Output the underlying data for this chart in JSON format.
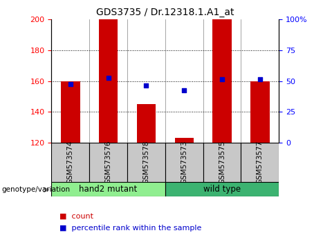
{
  "title": "GDS3735 / Dr.12318.1.A1_at",
  "samples": [
    "GSM573574",
    "GSM573576",
    "GSM573578",
    "GSM573573",
    "GSM573575",
    "GSM573577"
  ],
  "group_hand2": {
    "label": "hand2 mutant",
    "color": "#90EE90",
    "count": 3
  },
  "group_wild": {
    "label": "wild type",
    "color": "#3CB371",
    "count": 3
  },
  "bar_baseline": 120,
  "bar_tops": [
    160,
    200,
    145,
    123,
    200,
    160
  ],
  "bar_color": "#CC0000",
  "bar_width": 0.5,
  "percentile_values": [
    158,
    162,
    157,
    154,
    161,
    161
  ],
  "percentile_color": "#0000CC",
  "left_ylim": [
    120,
    200
  ],
  "left_yticks": [
    120,
    140,
    160,
    180,
    200
  ],
  "right_ylim": [
    0,
    100
  ],
  "right_yticks": [
    0,
    25,
    50,
    75,
    100
  ],
  "right_yticklabels": [
    "0",
    "25",
    "50",
    "75",
    "100%"
  ],
  "hlines": [
    140,
    160,
    180
  ],
  "group_label_text": "genotype/variation",
  "legend_count_color": "#CC0000",
  "legend_pct_color": "#0000CC",
  "legend_count_label": "count",
  "legend_pct_label": "percentile rank within the sample",
  "sample_box_color": "#C8C8C8",
  "title_fontsize": 10
}
